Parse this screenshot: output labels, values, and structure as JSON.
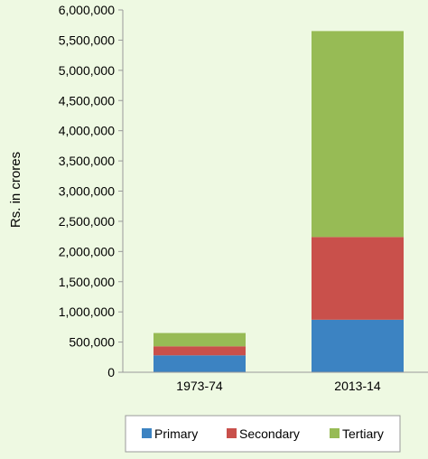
{
  "chart_data": {
    "type": "bar",
    "stacked": true,
    "title": "",
    "xlabel": "",
    "ylabel": "Rs. in crores",
    "ylim": [
      0,
      6000000
    ],
    "yticks": [
      "0",
      "500,000",
      "1,000,000",
      "1,500,000",
      "2,000,000",
      "2,500,000",
      "3,000,000",
      "3,500,000",
      "4,000,000",
      "4,500,000",
      "5,000,000",
      "5,500,000",
      "6,000,000"
    ],
    "categories": [
      "1973-74",
      "2013-14"
    ],
    "series": [
      {
        "name": "Primary",
        "color": "#3c83c2",
        "values": [
          280000,
          870000
        ]
      },
      {
        "name": "Secondary",
        "color": "#c9504b",
        "values": [
          150000,
          1370000
        ]
      },
      {
        "name": "Tertiary",
        "color": "#97bb55",
        "values": [
          220000,
          3410000
        ]
      }
    ],
    "grid": false,
    "legend_position": "bottom"
  }
}
